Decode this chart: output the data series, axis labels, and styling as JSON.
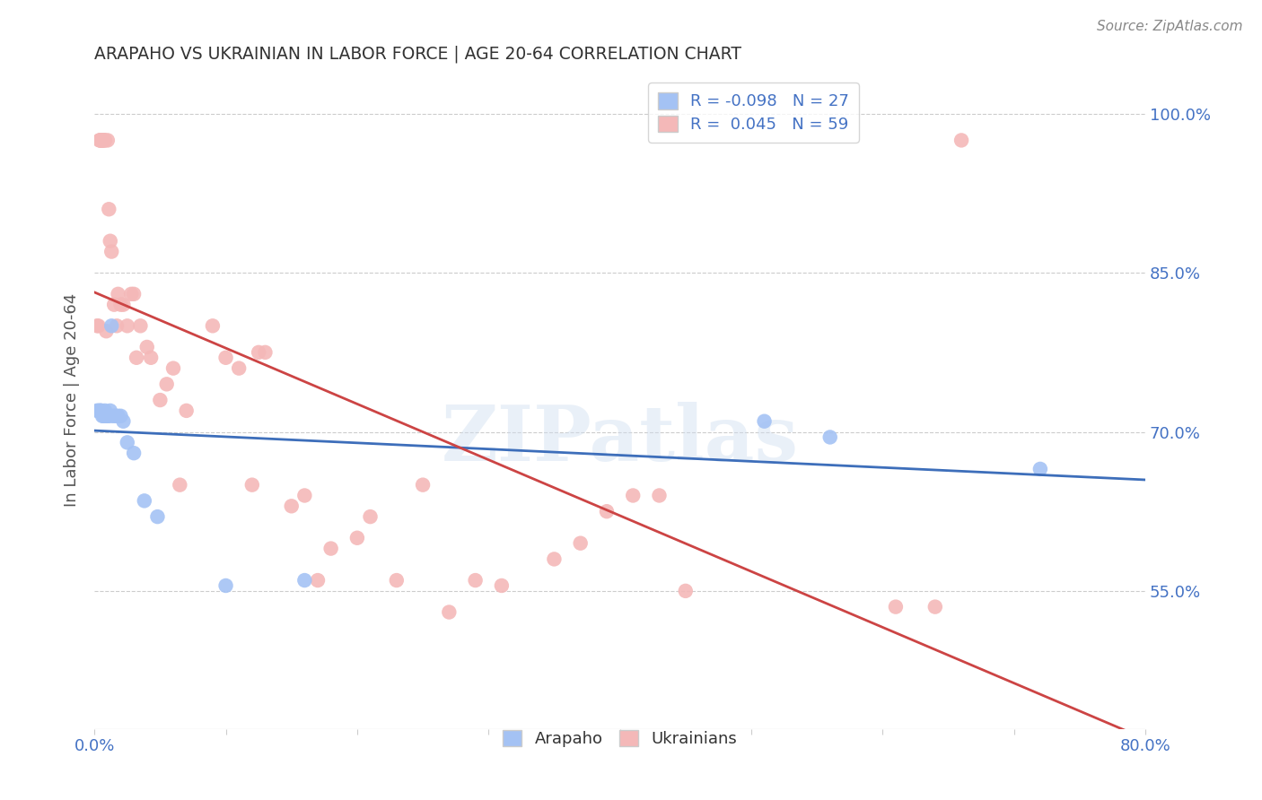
{
  "title": "ARAPAHO VS UKRAINIAN IN LABOR FORCE | AGE 20-64 CORRELATION CHART",
  "source": "Source: ZipAtlas.com",
  "ylabel": "In Labor Force | Age 20-64",
  "xlim": [
    0.0,
    0.8
  ],
  "ylim": [
    0.42,
    1.04
  ],
  "yticks": [
    0.55,
    0.7,
    0.85,
    1.0
  ],
  "ytick_labels": [
    "55.0%",
    "70.0%",
    "85.0%",
    "100.0%"
  ],
  "xtick_positions": [
    0.0,
    0.1,
    0.2,
    0.3,
    0.4,
    0.5,
    0.6,
    0.7,
    0.8
  ],
  "xtick_labels": [
    "0.0%",
    "",
    "",
    "",
    "",
    "",
    "",
    "",
    "80.0%"
  ],
  "arapaho_color": "#a4c2f4",
  "ukrainian_color": "#f4b8b8",
  "trend_arapaho_color": "#3d6eba",
  "trend_ukrainian_color": "#cc4444",
  "arapaho_R": "-0.098",
  "arapaho_N": "27",
  "ukrainian_R": "0.045",
  "ukrainian_N": "59",
  "legend_arapaho_color": "#a4c2f4",
  "legend_ukrainian_color": "#f4b8b8",
  "watermark_text": "ZIPatlas",
  "background_color": "#ffffff",
  "arapaho_x": [
    0.002,
    0.003,
    0.004,
    0.005,
    0.005,
    0.006,
    0.007,
    0.008,
    0.009,
    0.01,
    0.011,
    0.012,
    0.013,
    0.014,
    0.016,
    0.018,
    0.02,
    0.022,
    0.025,
    0.03,
    0.038,
    0.048,
    0.1,
    0.16,
    0.51,
    0.56,
    0.72
  ],
  "arapaho_y": [
    0.72,
    0.72,
    0.72,
    0.72,
    0.72,
    0.715,
    0.715,
    0.72,
    0.715,
    0.715,
    0.715,
    0.72,
    0.8,
    0.715,
    0.715,
    0.715,
    0.715,
    0.71,
    0.69,
    0.68,
    0.635,
    0.62,
    0.555,
    0.56,
    0.71,
    0.695,
    0.665
  ],
  "ukrainian_x": [
    0.002,
    0.003,
    0.004,
    0.004,
    0.005,
    0.005,
    0.006,
    0.006,
    0.007,
    0.007,
    0.008,
    0.009,
    0.01,
    0.011,
    0.012,
    0.013,
    0.015,
    0.017,
    0.018,
    0.02,
    0.022,
    0.025,
    0.028,
    0.03,
    0.032,
    0.035,
    0.04,
    0.043,
    0.05,
    0.055,
    0.06,
    0.065,
    0.07,
    0.09,
    0.1,
    0.11,
    0.12,
    0.125,
    0.13,
    0.15,
    0.16,
    0.17,
    0.18,
    0.2,
    0.21,
    0.23,
    0.25,
    0.27,
    0.29,
    0.31,
    0.35,
    0.37,
    0.39,
    0.41,
    0.43,
    0.45,
    0.61,
    0.64,
    0.66
  ],
  "ukrainian_y": [
    0.8,
    0.8,
    0.975,
    0.975,
    0.975,
    0.975,
    0.975,
    0.975,
    0.975,
    0.975,
    0.975,
    0.795,
    0.975,
    0.91,
    0.88,
    0.87,
    0.82,
    0.8,
    0.83,
    0.82,
    0.82,
    0.8,
    0.83,
    0.83,
    0.77,
    0.8,
    0.78,
    0.77,
    0.73,
    0.745,
    0.76,
    0.65,
    0.72,
    0.8,
    0.77,
    0.76,
    0.65,
    0.775,
    0.775,
    0.63,
    0.64,
    0.56,
    0.59,
    0.6,
    0.62,
    0.56,
    0.65,
    0.53,
    0.56,
    0.555,
    0.58,
    0.595,
    0.625,
    0.64,
    0.64,
    0.55,
    0.535,
    0.535,
    0.975
  ]
}
